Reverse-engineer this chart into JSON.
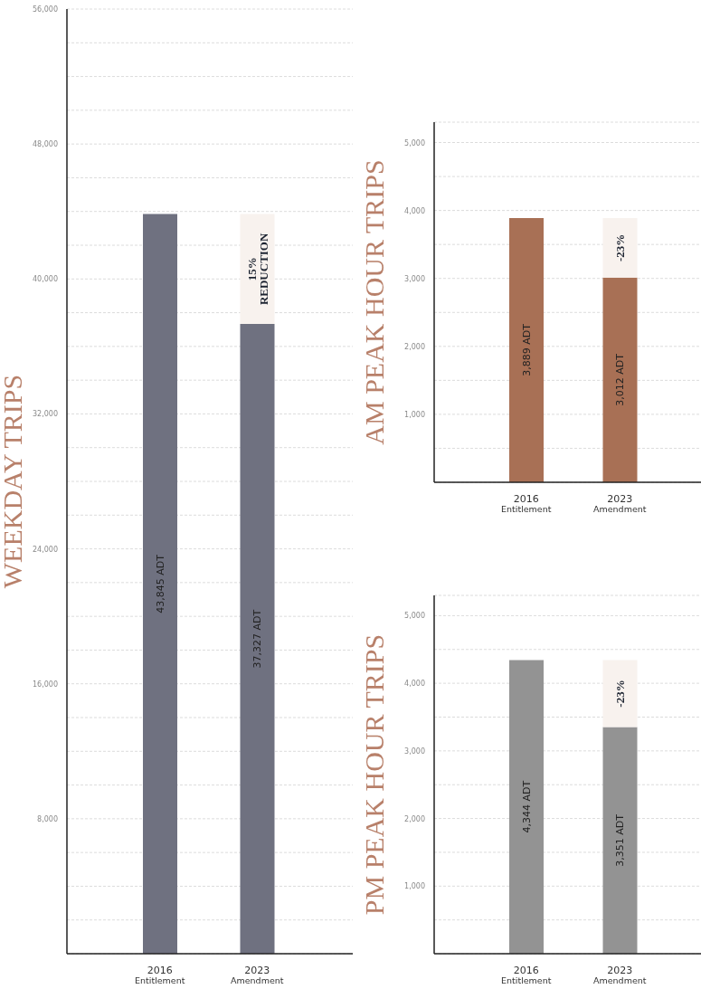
{
  "chart_data": [
    {
      "type": "bar",
      "stacked": true,
      "ylabel": "WEEKDAY TRIPS",
      "categories": [
        "2016\nEntitlement",
        "2023\nAmendment"
      ],
      "series": [
        {
          "color": "#6f7180",
          "values": [
            43845,
            37327
          ],
          "value_labels": [
            "43,845 ADT",
            "37,327 ADT"
          ]
        },
        {
          "color": "#f8f2ee",
          "values": [
            null,
            6518
          ]
        }
      ],
      "annotations": [
        "15%\nREDUCTION"
      ],
      "ylim": [
        0,
        56000
      ],
      "yticks": [
        {
          "value": 2000,
          "label": null
        },
        {
          "value": 4000,
          "label": null
        },
        {
          "value": 6000,
          "label": null
        },
        {
          "value": 8000,
          "label": "8,000"
        },
        {
          "value": 10000,
          "label": null
        },
        {
          "value": 12000,
          "label": null
        },
        {
          "value": 14000,
          "label": null
        },
        {
          "value": 16000,
          "label": "16,000"
        },
        {
          "value": 18000,
          "label": null
        },
        {
          "value": 20000,
          "label": null
        },
        {
          "value": 22000,
          "label": null
        },
        {
          "value": 24000,
          "label": "24,000"
        },
        {
          "value": 26000,
          "label": null
        },
        {
          "value": 28000,
          "label": null
        },
        {
          "value": 30000,
          "label": null
        },
        {
          "value": 32000,
          "label": "32,000"
        },
        {
          "value": 34000,
          "label": null
        },
        {
          "value": 36000,
          "label": null
        },
        {
          "value": 38000,
          "label": null
        },
        {
          "value": 40000,
          "label": "40,000"
        },
        {
          "value": 42000,
          "label": null
        },
        {
          "value": 44000,
          "label": null
        },
        {
          "value": 46000,
          "label": null
        },
        {
          "value": 48000,
          "label": "48,000"
        },
        {
          "value": 50000,
          "label": null
        },
        {
          "value": 52000,
          "label": null
        },
        {
          "value": 54000,
          "label": null
        },
        {
          "value": 56000,
          "label": "56,000"
        }
      ],
      "grid": "y"
    },
    {
      "type": "bar",
      "stacked": true,
      "ylabel": "AM PEAK HOUR TRIPS",
      "categories": [
        "2016\nEntitlement",
        "2023\nAmendment"
      ],
      "series": [
        {
          "color": "#a87055",
          "values": [
            3889,
            3012
          ],
          "value_labels": [
            "3,889 ADT",
            "3,012 ADT"
          ]
        },
        {
          "color": "#f8f2ee",
          "values": [
            null,
            877
          ]
        }
      ],
      "annotations": [
        "-23%"
      ],
      "ylim": [
        0,
        5300
      ],
      "yticks": [
        {
          "value": 500,
          "label": null
        },
        {
          "value": 1000,
          "label": "1,000"
        },
        {
          "value": 1500,
          "label": null
        },
        {
          "value": 2000,
          "label": "2,000"
        },
        {
          "value": 2500,
          "label": null
        },
        {
          "value": 3000,
          "label": "3,000"
        },
        {
          "value": 3500,
          "label": null
        },
        {
          "value": 4000,
          "label": "4,000"
        },
        {
          "value": 4500,
          "label": null
        },
        {
          "value": 5000,
          "label": "5,000"
        }
      ],
      "grid": "y"
    },
    {
      "type": "bar",
      "stacked": true,
      "ylabel": "PM PEAK HOUR TRIPS",
      "categories": [
        "2016\nEntitlement",
        "2023\nAmendment"
      ],
      "series": [
        {
          "color": "#939393",
          "values": [
            4344,
            3351
          ],
          "value_labels": [
            "4,344 ADT",
            "3,351 ADT"
          ]
        },
        {
          "color": "#f8f2ee",
          "values": [
            null,
            993
          ]
        }
      ],
      "annotations": [
        "-23%"
      ],
      "ylim": [
        0,
        5300
      ],
      "yticks": [
        {
          "value": 500,
          "label": null
        },
        {
          "value": 1000,
          "label": "1,000"
        },
        {
          "value": 1500,
          "label": null
        },
        {
          "value": 2000,
          "label": "2,000"
        },
        {
          "value": 2500,
          "label": null
        },
        {
          "value": 3000,
          "label": "3,000"
        },
        {
          "value": 3500,
          "label": null
        },
        {
          "value": 4000,
          "label": "4,000"
        },
        {
          "value": 4500,
          "label": null
        },
        {
          "value": 5000,
          "label": "5,000"
        }
      ],
      "grid": "y"
    }
  ]
}
